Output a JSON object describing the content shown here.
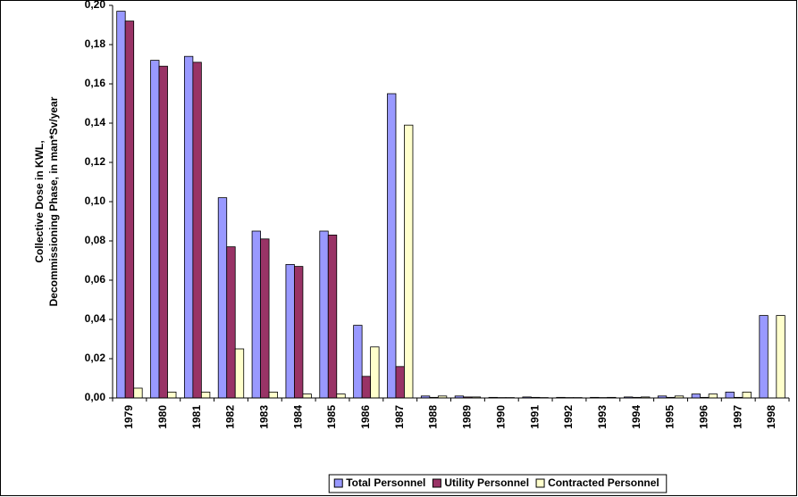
{
  "chart_data": {
    "type": "bar",
    "ylabel": [
      "Collective Dose in KWL,",
      "Decommissioning Phase, in man*Sv/year"
    ],
    "categories": [
      "1979",
      "1980",
      "1981",
      "1982",
      "1983",
      "1984",
      "1985",
      "1986",
      "1987",
      "1988",
      "1989",
      "1990",
      "1991",
      "1992",
      "1993",
      "1994",
      "1995",
      "1996",
      "1997",
      "1998"
    ],
    "series": [
      {
        "name": "Total Personnel",
        "color": "#9999ff",
        "values": [
          0.197,
          0.172,
          0.174,
          0.102,
          0.085,
          0.068,
          0.085,
          0.037,
          0.155,
          0.001,
          0.001,
          0.0003,
          0.0005,
          0.0003,
          0.0003,
          0.0005,
          0.001,
          0.002,
          0.003,
          0.042
        ]
      },
      {
        "name": "Utility Personnel",
        "color": "#993366",
        "values": [
          0.192,
          0.169,
          0.171,
          0.077,
          0.081,
          0.067,
          0.083,
          0.011,
          0.016,
          0.0003,
          0.0005,
          0.0002,
          0.0003,
          0.0002,
          0.0002,
          0.0003,
          0.0003,
          0.0003,
          0.0003,
          0
        ]
      },
      {
        "name": "Contracted Personnel",
        "color": "#ffffcc",
        "values": [
          0.005,
          0.003,
          0.003,
          0.025,
          0.003,
          0.002,
          0.002,
          0.026,
          0.139,
          0.001,
          0.0005,
          0.0002,
          0.0002,
          0.0002,
          0.0003,
          0.0005,
          0.001,
          0.002,
          0.003,
          0.042
        ]
      }
    ],
    "ylim": [
      0,
      0.2
    ],
    "yticks": [
      {
        "value": 0,
        "label": "0,00"
      },
      {
        "value": 0.02,
        "label": "0,02"
      },
      {
        "value": 0.04,
        "label": "0,04"
      },
      {
        "value": 0.06,
        "label": "0,06"
      },
      {
        "value": 0.08,
        "label": "0,08"
      },
      {
        "value": 0.1,
        "label": "0,10"
      },
      {
        "value": 0.12,
        "label": "0,12"
      },
      {
        "value": 0.14,
        "label": "0,14"
      },
      {
        "value": 0.16,
        "label": "0,16"
      },
      {
        "value": 0.18,
        "label": "0,18"
      },
      {
        "value": 0.2,
        "label": "0,20"
      }
    ],
    "legend": "bottom"
  }
}
